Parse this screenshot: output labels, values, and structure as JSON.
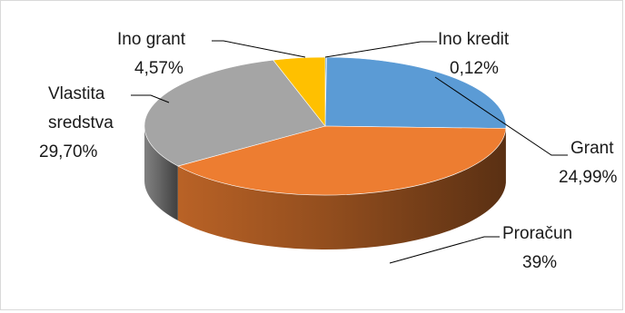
{
  "chart_data": {
    "type": "pie",
    "style": "3d",
    "legend": "none",
    "slices": [
      {
        "label": "Ino kredit",
        "value": 0.12,
        "value_text": "0,12%",
        "color": "#5b9bd5"
      },
      {
        "label": "Grant",
        "value": 24.99,
        "value_text": "24,99%",
        "color": "#5b9bd5"
      },
      {
        "label": "Proračun",
        "value": 39,
        "value_text": "39%",
        "color": "#ed7d31"
      },
      {
        "label": "Vlastita sredstva",
        "label_lines": [
          "Vlastita",
          "sredstva"
        ],
        "value": 29.7,
        "value_text": "29,70%",
        "color": "#a5a5a5"
      },
      {
        "label": "Ino grant",
        "value": 4.57,
        "value_text": "4,57%",
        "color": "#ffc000"
      }
    ]
  }
}
